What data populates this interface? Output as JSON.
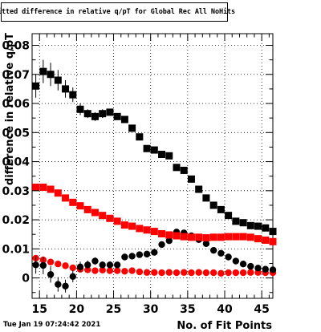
{
  "title": "Fitted difference in relative q/pT for Global Rec All NoHits",
  "timestamp": "Tue Jan 19 07:24:42 2021",
  "chart_data": {
    "type": "scatter",
    "title": "Fitted difference in relative q/pT for Global Rec All NoHits",
    "xlabel": "No. of Fit Points",
    "ylabel": "difference in relative q/pT",
    "xlim": [
      14,
      46.5
    ],
    "ylim": [
      -0.007,
      0.084
    ],
    "grid": true,
    "x_ticks": [
      15,
      20,
      25,
      30,
      35,
      40,
      45
    ],
    "y_ticks": [
      0,
      0.01,
      0.02,
      0.03,
      0.04,
      0.05,
      0.06,
      0.07,
      0.08
    ],
    "y_tick_labels": [
      "0",
      "0.01",
      "0.02",
      "0.03",
      "0.04",
      "0.05",
      "0.06",
      "0.07",
      "0.08"
    ],
    "series": [
      {
        "marker": "square",
        "color": "#000000",
        "x": [
          14.5,
          15.5,
          16.5,
          17.5,
          18.5,
          19.5,
          20.5,
          21.5,
          22.5,
          23.5,
          24.5,
          25.5,
          26.5,
          27.5,
          28.5,
          29.5,
          30.5,
          31.5,
          32.5,
          33.5,
          34.5,
          35.5,
          36.5,
          37.5,
          38.5,
          39.5,
          40.5,
          41.5,
          42.5,
          43.5,
          44.5,
          45.5,
          46.5
        ],
        "y": [
          0.066,
          0.071,
          0.07,
          0.068,
          0.065,
          0.063,
          0.058,
          0.0565,
          0.0555,
          0.0565,
          0.057,
          0.0555,
          0.0545,
          0.0515,
          0.0485,
          0.0445,
          0.044,
          0.0425,
          0.042,
          0.038,
          0.037,
          0.034,
          0.0305,
          0.0275,
          0.025,
          0.0235,
          0.0215,
          0.0195,
          0.019,
          0.018,
          0.0178,
          0.0172,
          0.016
        ],
        "yerr": [
          0.004,
          0.004,
          0.004,
          0.0035,
          0.003,
          0.0025,
          0.002,
          0.0015,
          0.0015,
          0.0015,
          0.0012,
          0.001,
          0.001,
          0.001,
          0.0008,
          0.0008,
          0.0008,
          0.0008,
          0.0008,
          0.0008,
          0.0008,
          0.0008,
          0.0008,
          0.0008,
          0.0008,
          0.0008,
          0.0008,
          0.0008,
          0.0008,
          0.0008,
          0.0008,
          0.0008,
          0.0008
        ]
      },
      {
        "marker": "circle",
        "color": "#ff0000",
        "x": [
          14.5,
          15.5,
          16.5,
          17.5,
          18.5,
          19.5,
          20.5,
          21.5,
          22.5,
          23.5,
          24.5,
          25.5,
          26.5,
          27.5,
          28.5,
          29.5,
          30.5,
          31.5,
          32.5,
          33.5,
          34.5,
          35.5,
          36.5,
          37.5,
          38.5,
          39.5,
          40.5,
          41.5,
          42.5,
          43.5,
          44.5,
          45.5,
          46.5
        ],
        "y": [
          0.0068,
          0.0062,
          0.0055,
          0.0048,
          0.0042,
          0.0035,
          0.003,
          0.0028,
          0.0025,
          0.0027,
          0.0025,
          0.0025,
          0.0023,
          0.0025,
          0.0021,
          0.0019,
          0.0019,
          0.0018,
          0.0019,
          0.0018,
          0.0019,
          0.0018,
          0.0019,
          0.0018,
          0.0018,
          0.0016,
          0.0018,
          0.0018,
          0.0018,
          0.0019,
          0.0019,
          0.0018,
          0.0018
        ],
        "yerr": [
          0.0004,
          0.0004,
          0.0004,
          0.0003,
          0.0003,
          0.0003,
          0.0003,
          0.0003,
          0.0003,
          0.0003,
          0.0003,
          0.0003,
          0.0003,
          0.0003,
          0.0003,
          0.0003,
          0.0003,
          0.0003,
          0.0003,
          0.0003,
          0.0003,
          0.0003,
          0.0003,
          0.0003,
          0.0003,
          0.0003,
          0.0003,
          0.0003,
          0.0003,
          0.0003,
          0.0003,
          0.0003,
          0.0003
        ]
      },
      {
        "marker": "circle",
        "color": "#000000",
        "x": [
          14.5,
          15.5,
          16.5,
          17.5,
          18.5,
          19.5,
          20.5,
          21.5,
          22.5,
          23.5,
          24.5,
          25.5,
          26.5,
          27.5,
          28.5,
          29.5,
          30.5,
          31.5,
          32.5,
          33.5,
          34.5,
          35.5,
          36.5,
          37.5,
          38.5,
          39.5,
          40.5,
          41.5,
          42.5,
          43.5,
          44.5,
          45.5,
          46.5
        ],
        "y": [
          0.0045,
          0.0043,
          0.0012,
          -0.0022,
          -0.0028,
          0.0005,
          0.0038,
          0.0045,
          0.0058,
          0.0045,
          0.0045,
          0.0045,
          0.0072,
          0.0075,
          0.008,
          0.0082,
          0.0088,
          0.0115,
          0.0128,
          0.0158,
          0.0155,
          0.0145,
          0.0132,
          0.0118,
          0.0095,
          0.0085,
          0.0072,
          0.0058,
          0.0048,
          0.004,
          0.0034,
          0.003,
          0.0028
        ],
        "yerr": [
          0.003,
          0.003,
          0.0028,
          0.0025,
          0.0022,
          0.002,
          0.0018,
          0.0015,
          0.0013,
          0.0012,
          0.0012,
          0.001,
          0.001,
          0.001,
          0.0009,
          0.0009,
          0.0009,
          0.0009,
          0.0008,
          0.0008,
          0.0008,
          0.0008,
          0.0008,
          0.0007,
          0.0007,
          0.0007,
          0.0007,
          0.0007,
          0.0006,
          0.0006,
          0.0006,
          0.0006,
          0.0006
        ]
      },
      {
        "marker": "square",
        "color": "#ff0000",
        "x": [
          14.5,
          15.5,
          16.5,
          17.5,
          18.5,
          19.5,
          20.5,
          21.5,
          22.5,
          23.5,
          24.5,
          25.5,
          26.5,
          27.5,
          28.5,
          29.5,
          30.5,
          31.5,
          32.5,
          33.5,
          34.5,
          35.5,
          36.5,
          37.5,
          38.5,
          39.5,
          40.5,
          41.5,
          42.5,
          43.5,
          44.5,
          45.5,
          46.5
        ],
        "y": [
          0.0312,
          0.0312,
          0.0305,
          0.0292,
          0.0275,
          0.026,
          0.0248,
          0.0235,
          0.0225,
          0.0215,
          0.0205,
          0.0195,
          0.0182,
          0.0178,
          0.017,
          0.0165,
          0.016,
          0.0152,
          0.0148,
          0.0145,
          0.0142,
          0.014,
          0.014,
          0.0138,
          0.014,
          0.014,
          0.0142,
          0.0142,
          0.0142,
          0.014,
          0.0135,
          0.013,
          0.0125
        ],
        "yerr": [
          0.0004,
          0.0004,
          0.0004,
          0.0004,
          0.0004,
          0.0004,
          0.0004,
          0.0004,
          0.0004,
          0.0004,
          0.0004,
          0.0004,
          0.0004,
          0.0004,
          0.0004,
          0.0004,
          0.0004,
          0.0004,
          0.0004,
          0.0004,
          0.0004,
          0.0004,
          0.0004,
          0.0004,
          0.0004,
          0.0004,
          0.0004,
          0.0004,
          0.0004,
          0.0004,
          0.0004,
          0.0004,
          0.0004
        ]
      }
    ]
  }
}
